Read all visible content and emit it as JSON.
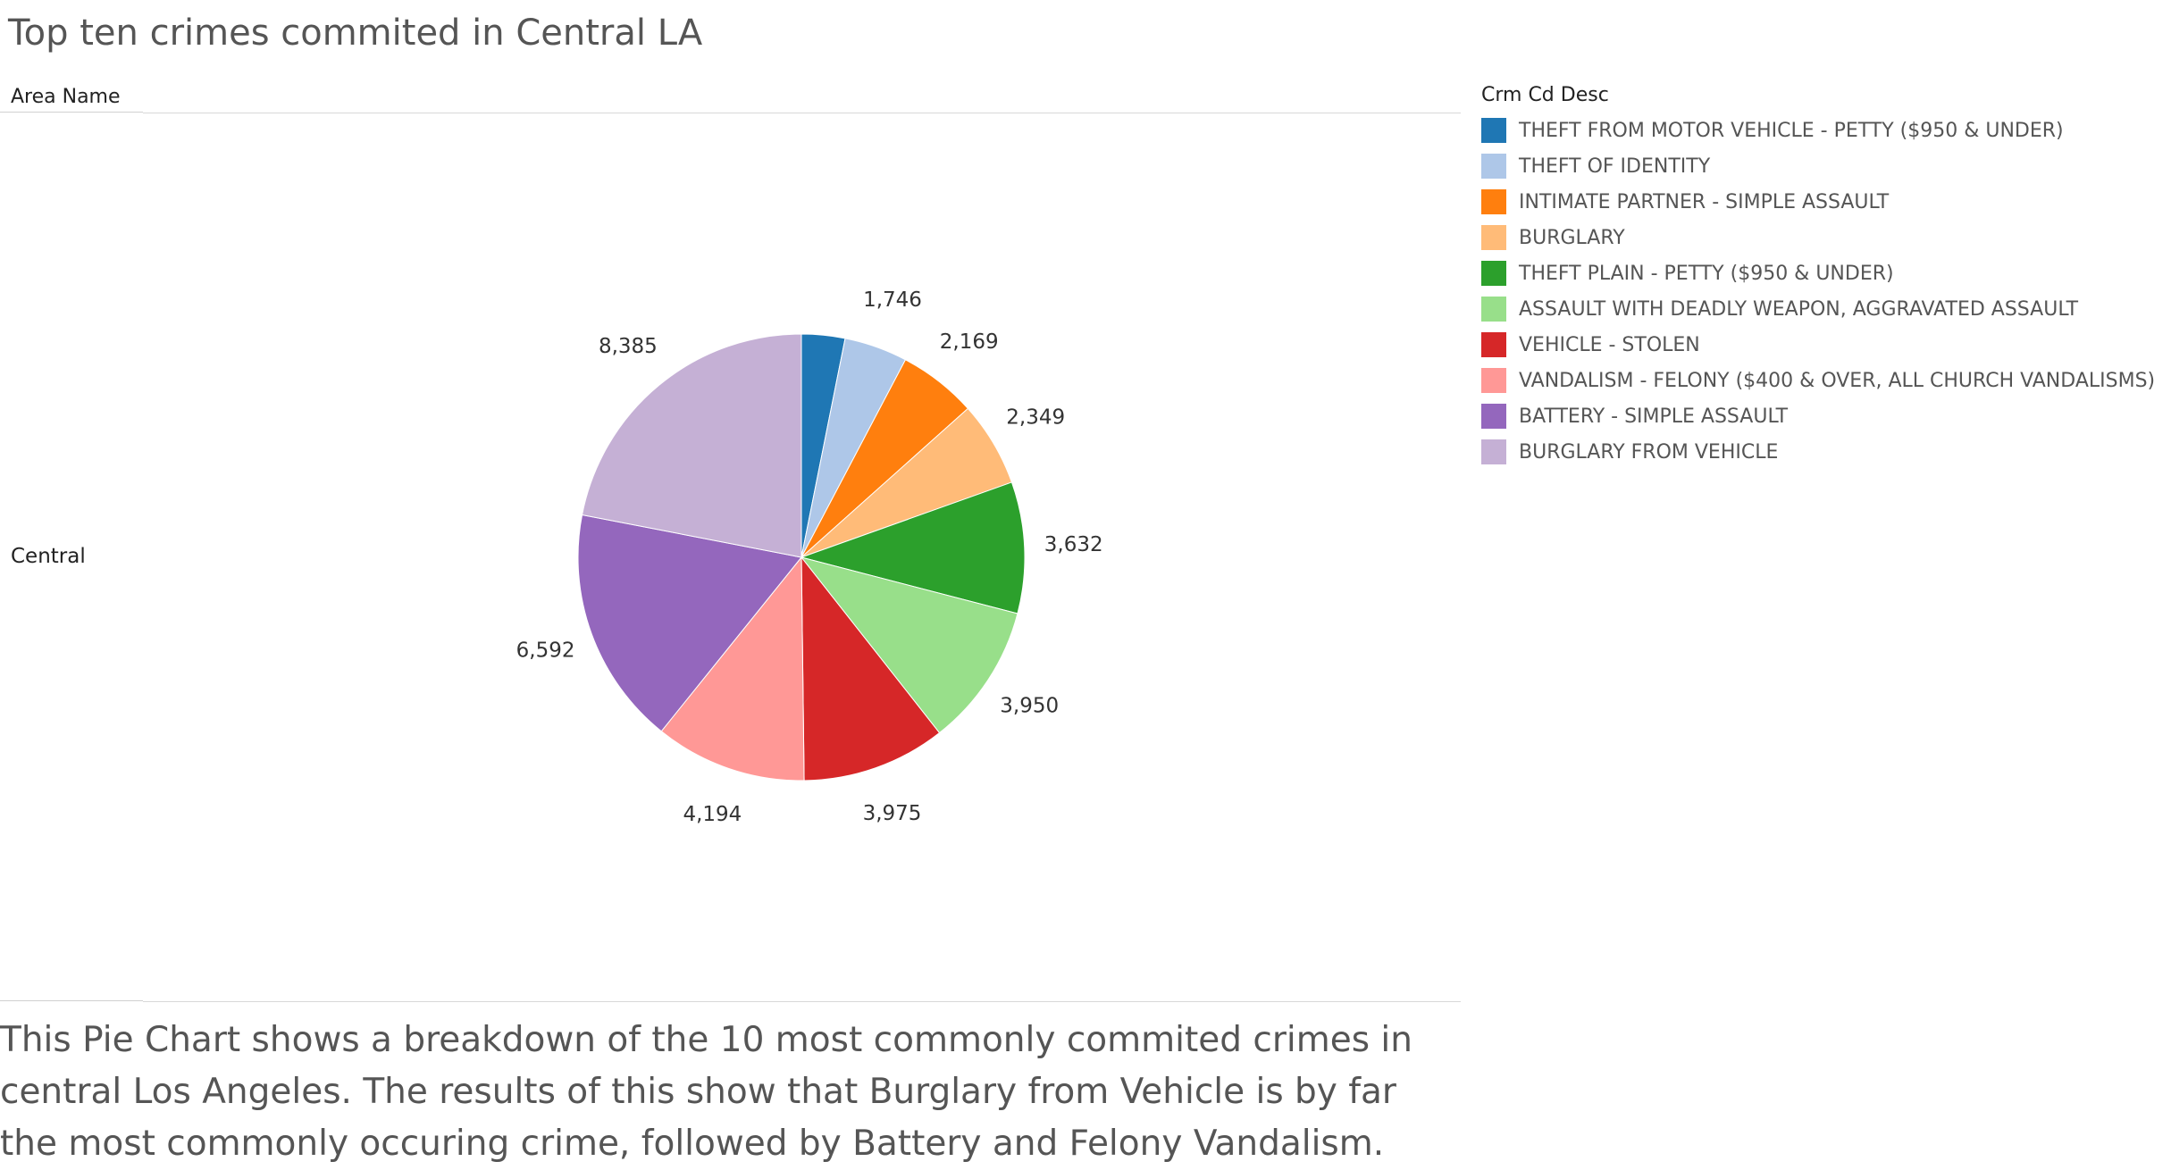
{
  "title": "Top ten crimes commited in Central LA",
  "row_header": "Area Name",
  "row_label": "Central",
  "legend_title": "Crm Cd Desc",
  "caption": "This Pie Chart shows a breakdown of the 10 most commonly commited crimes in central Los Angeles. The results of this show that Burglary from Vehicle is by far the most commonly occuring crime, followed by Battery and Felony Vandalism.",
  "chart_data": {
    "type": "pie",
    "title": "Top ten crimes commited in Central LA",
    "legend_placement": "top-right",
    "slices": [
      {
        "name": "THEFT FROM MOTOR VEHICLE - PETTY ($950 & UNDER)",
        "value": 1200,
        "label": "",
        "color": "#1f77b4"
      },
      {
        "name": "THEFT OF IDENTITY",
        "value": 1746,
        "label": "1,746",
        "color": "#aec7e8"
      },
      {
        "name": "INTIMATE PARTNER - SIMPLE ASSAULT",
        "value": 2169,
        "label": "2,169",
        "color": "#ff7f0e"
      },
      {
        "name": "BURGLARY",
        "value": 2349,
        "label": "2,349",
        "color": "#ffbb78"
      },
      {
        "name": "THEFT PLAIN - PETTY ($950 & UNDER)",
        "value": 3632,
        "label": "3,632",
        "color": "#2ca02c"
      },
      {
        "name": "ASSAULT WITH DEADLY WEAPON, AGGRAVATED ASSAULT",
        "value": 3950,
        "label": "3,950",
        "color": "#98df8a"
      },
      {
        "name": "VEHICLE - STOLEN",
        "value": 3975,
        "label": "3,975",
        "color": "#d62728"
      },
      {
        "name": "VANDALISM - FELONY ($400 & OVER, ALL CHURCH VANDALISMS)",
        "value": 4194,
        "label": "4,194",
        "color": "#ff9896"
      },
      {
        "name": "BATTERY - SIMPLE ASSAULT",
        "value": 6592,
        "label": "6,592",
        "color": "#9467bd"
      },
      {
        "name": "BURGLARY FROM VEHICLE",
        "value": 8385,
        "label": "8,385",
        "color": "#c5b0d5"
      }
    ]
  }
}
